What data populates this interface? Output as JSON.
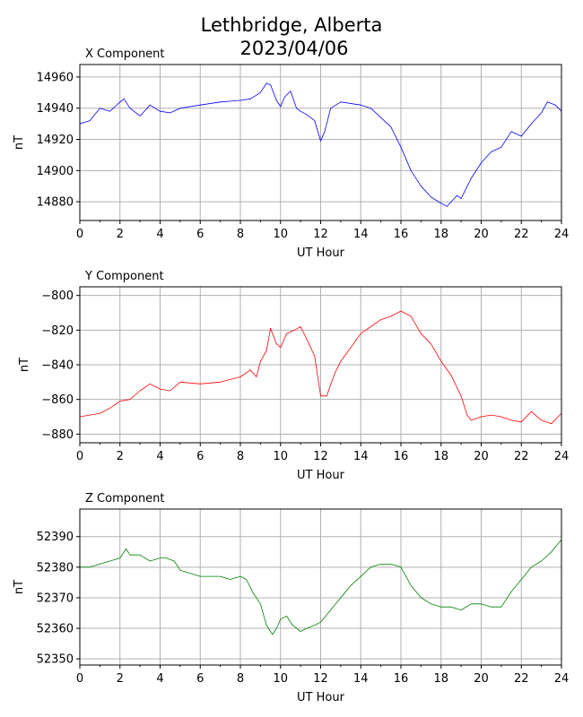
{
  "figure": {
    "title_line1": "Lethbridge, Alberta",
    "title_line2": "2023/04/06"
  },
  "chart_data": [
    {
      "type": "line",
      "title": "X Component",
      "xlabel": "UT Hour",
      "ylabel": "nT",
      "xlim": [
        0,
        24
      ],
      "ylim": [
        14868,
        14968
      ],
      "xticks": [
        0,
        2,
        4,
        6,
        8,
        10,
        12,
        14,
        16,
        18,
        20,
        22,
        24
      ],
      "yticks": [
        14880,
        14900,
        14920,
        14940,
        14960
      ],
      "grid": true,
      "color": "#0000ff",
      "x": [
        0,
        0.5,
        1,
        1.5,
        2,
        2.2,
        2.5,
        3,
        3.5,
        4,
        4.5,
        5,
        6,
        7,
        8,
        8.5,
        9,
        9.3,
        9.5,
        9.8,
        10,
        10.2,
        10.5,
        10.8,
        11,
        11.3,
        11.7,
        12,
        12.2,
        12.5,
        13,
        14,
        14.5,
        15,
        15.5,
        16,
        16.5,
        17,
        17.5,
        18,
        18.3,
        18.5,
        18.8,
        19,
        19.5,
        20,
        20.5,
        21,
        21.5,
        22,
        22.5,
        23,
        23.3,
        23.7,
        24
      ],
      "values": [
        14930,
        14932,
        14940,
        14938,
        14944,
        14946,
        14940,
        14935,
        14942,
        14938,
        14937,
        14940,
        14942,
        14944,
        14945,
        14946,
        14950,
        14956,
        14955,
        14945,
        14941,
        14947,
        14951,
        14940,
        14938,
        14936,
        14932,
        14919,
        14925,
        14940,
        14944,
        14942,
        14940,
        14934,
        14928,
        14915,
        14900,
        14890,
        14883,
        14879,
        14877,
        14880,
        14884,
        14882,
        14895,
        14905,
        14912,
        14915,
        14925,
        14922,
        14930,
        14937,
        14944,
        14942,
        14938
      ]
    },
    {
      "type": "line",
      "title": "Y Component",
      "xlabel": "UT Hour",
      "ylabel": "nT",
      "xlim": [
        0,
        24
      ],
      "ylim": [
        -885,
        -795
      ],
      "xticks": [
        0,
        2,
        4,
        6,
        8,
        10,
        12,
        14,
        16,
        18,
        20,
        22,
        24
      ],
      "yticks": [
        -880,
        -860,
        -840,
        -820,
        -800
      ],
      "grid": true,
      "color": "#ff0000",
      "x": [
        0,
        0.5,
        1,
        1.5,
        2,
        2.5,
        3,
        3.5,
        4,
        4.5,
        5,
        6,
        7,
        8,
        8.5,
        8.8,
        9,
        9.3,
        9.5,
        9.8,
        10,
        10.3,
        10.7,
        11,
        11.3,
        11.7,
        12,
        12.3,
        12.7,
        13,
        13.5,
        14,
        14.5,
        15,
        15.5,
        16,
        16.5,
        17,
        17.5,
        18,
        18.5,
        19,
        19.3,
        19.5,
        20,
        20.5,
        21,
        21.5,
        22,
        22.5,
        23,
        23.5,
        24
      ],
      "values": [
        -870,
        -869,
        -868,
        -865,
        -861,
        -860,
        -855,
        -851,
        -854,
        -855,
        -850,
        -851,
        -850,
        -847,
        -843,
        -847,
        -838,
        -832,
        -819,
        -828,
        -830,
        -822,
        -820,
        -818,
        -825,
        -835,
        -858,
        -858,
        -845,
        -838,
        -830,
        -822,
        -818,
        -814,
        -812,
        -809,
        -812,
        -822,
        -828,
        -838,
        -846,
        -858,
        -869,
        -872,
        -870,
        -869,
        -870,
        -872,
        -873,
        -867,
        -872,
        -874,
        -868
      ]
    },
    {
      "type": "line",
      "title": "Z Component",
      "xlabel": "UT Hour",
      "ylabel": "nT",
      "xlim": [
        0,
        24
      ],
      "ylim": [
        52348,
        52399
      ],
      "xticks": [
        0,
        2,
        4,
        6,
        8,
        10,
        12,
        14,
        16,
        18,
        20,
        22,
        24
      ],
      "yticks": [
        52350,
        52360,
        52370,
        52380,
        52390
      ],
      "grid": true,
      "color": "#008000",
      "x": [
        0,
        0.5,
        1,
        1.5,
        2,
        2.3,
        2.5,
        3,
        3.5,
        4,
        4.3,
        4.7,
        5,
        5.5,
        6,
        6.5,
        7,
        7.5,
        8,
        8.3,
        8.6,
        9,
        9.3,
        9.6,
        9.8,
        10,
        10.3,
        10.6,
        11,
        11.3,
        11.7,
        12,
        12.5,
        13,
        13.5,
        14,
        14.5,
        15,
        15.5,
        16,
        16.5,
        17,
        17.5,
        18,
        18.5,
        19,
        19.5,
        20,
        20.5,
        21,
        21.5,
        22,
        22.5,
        23,
        23.5,
        24
      ],
      "values": [
        52380,
        52380,
        52381,
        52382,
        52383,
        52386,
        52384,
        52384,
        52382,
        52383,
        52383,
        52382,
        52379,
        52378,
        52377,
        52377,
        52377,
        52376,
        52377,
        52376,
        52372,
        52368,
        52361,
        52358,
        52360,
        52363,
        52364,
        52361,
        52359,
        52360,
        52361,
        52362,
        52366,
        52370,
        52374,
        52377,
        52380,
        52381,
        52381,
        52380,
        52374,
        52370,
        52368,
        52367,
        52367,
        52366,
        52368,
        52368,
        52367,
        52367,
        52372,
        52376,
        52380,
        52382,
        52385,
        52389
      ]
    }
  ]
}
